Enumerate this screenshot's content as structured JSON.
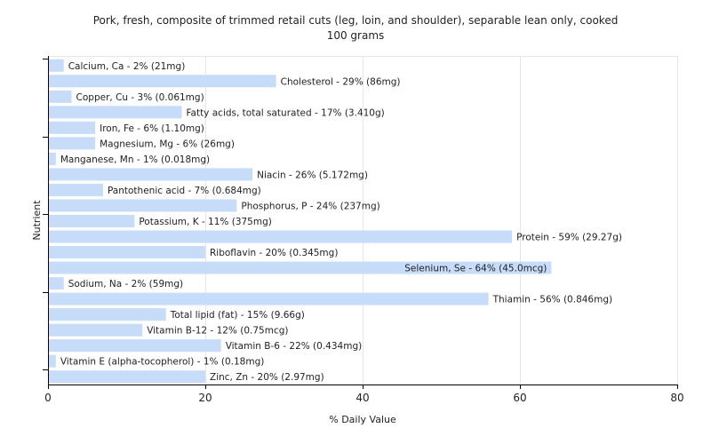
{
  "chart_data": {
    "type": "bar",
    "orientation": "horizontal",
    "title_lines": [
      "Pork, fresh, composite of trimmed retail cuts (leg, loin, and shoulder), separable lean only, cooked",
      "100 grams"
    ],
    "xlabel": "% Daily Value",
    "ylabel": "Nutrient",
    "xlim": [
      0,
      80
    ],
    "xticks": [
      0,
      20,
      40,
      60,
      80
    ],
    "grid": true,
    "bar_color": "#c6dcf8",
    "categories": [
      "Calcium, Ca",
      "Cholesterol",
      "Copper, Cu",
      "Fatty acids, total saturated",
      "Iron, Fe",
      "Magnesium, Mg",
      "Manganese, Mn",
      "Niacin",
      "Pantothenic acid",
      "Phosphorus, P",
      "Potassium, K",
      "Protein",
      "Riboflavin",
      "Selenium, Se",
      "Sodium, Na",
      "Thiamin",
      "Total lipid (fat)",
      "Vitamin B-12",
      "Vitamin B-6",
      "Vitamin E (alpha-tocopherol)",
      "Zinc, Zn"
    ],
    "values": [
      2,
      29,
      3,
      17,
      6,
      6,
      1,
      26,
      7,
      24,
      11,
      59,
      20,
      64,
      2,
      56,
      15,
      12,
      22,
      1,
      20
    ],
    "labels": [
      "Calcium, Ca - 2% (21mg)",
      "Cholesterol - 29% (86mg)",
      "Copper, Cu - 3% (0.061mg)",
      "Fatty acids, total saturated - 17% (3.410g)",
      "Iron, Fe - 6% (1.10mg)",
      "Magnesium, Mg - 6% (26mg)",
      "Manganese, Mn - 1% (0.018mg)",
      "Niacin - 26% (5.172mg)",
      "Pantothenic acid - 7% (0.684mg)",
      "Phosphorus, P - 24% (237mg)",
      "Potassium, K - 11% (375mg)",
      "Protein - 59% (29.27g)",
      "Riboflavin - 20% (0.345mg)",
      "Selenium, Se - 64% (45.0mcg)",
      "Sodium, Na - 2% (59mg)",
      "Thiamin - 56% (0.846mg)",
      "Total lipid (fat) - 15% (9.66g)",
      "Vitamin B-12 - 12% (0.75mcg)",
      "Vitamin B-6 - 22% (0.434mg)",
      "Vitamin E (alpha-tocopherol) - 1% (0.18mg)",
      "Zinc, Zn - 20% (2.97mg)"
    ]
  }
}
